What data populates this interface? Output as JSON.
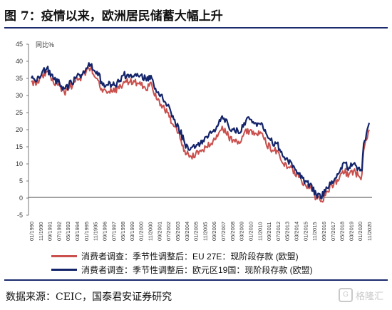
{
  "figure": {
    "title": "图 7：疫情以来，欧洲居民储蓄大幅上升",
    "source": "数据来源：CEIC，国泰君安证券研究",
    "watermark": "格隆汇"
  },
  "chart_data": {
    "type": "line",
    "unit_label": "同比%",
    "ylim": [
      -5,
      45
    ],
    "yticks": [
      -5,
      0,
      5,
      10,
      15,
      20,
      25,
      30,
      35,
      40,
      45
    ],
    "x_range": [
      "1990-01",
      "2020-11"
    ],
    "xticks": [
      "01/1990",
      "11/1990",
      "09/1991",
      "07/1992",
      "05/1993",
      "03/1994",
      "01/1995",
      "11/1995",
      "09/1996",
      "07/1997",
      "05/1998",
      "03/1999",
      "01/2000",
      "11/2000",
      "09/2001",
      "07/2002",
      "05/2003",
      "03/2004",
      "01/2005",
      "11/2005",
      "09/2006",
      "07/2007",
      "05/2008",
      "03/2009",
      "01/2010",
      "11/2010",
      "09/2011",
      "07/2012",
      "05/2013",
      "03/2014",
      "01/2015",
      "11/2015",
      "09/2016",
      "07/2017",
      "05/2018",
      "03/2019",
      "01/2020",
      "11/2020"
    ],
    "grid": false,
    "legend_position": "bottom",
    "series": [
      {
        "name": "消费者调查：季节性调整后：EU 27E：现阶段存款 (欧盟)",
        "color": "#c9504d",
        "points": [
          [
            "1990-01",
            34
          ],
          [
            "1990-06",
            33
          ],
          [
            "1991-01",
            36
          ],
          [
            "1991-06",
            37
          ],
          [
            "1992-01",
            34
          ],
          [
            "1992-06",
            33
          ],
          [
            "1993-01",
            31
          ],
          [
            "1993-06",
            32
          ],
          [
            "1994-01",
            34
          ],
          [
            "1994-06",
            35
          ],
          [
            "1995-01",
            37
          ],
          [
            "1995-06",
            38
          ],
          [
            "1996-01",
            35
          ],
          [
            "1996-06",
            32
          ],
          [
            "1997-01",
            31
          ],
          [
            "1997-06",
            31
          ],
          [
            "1998-01",
            32
          ],
          [
            "1998-06",
            34
          ],
          [
            "1999-01",
            34
          ],
          [
            "1999-06",
            34
          ],
          [
            "2000-01",
            33
          ],
          [
            "2000-06",
            32
          ],
          [
            "2001-01",
            33
          ],
          [
            "2001-06",
            29
          ],
          [
            "2002-01",
            27
          ],
          [
            "2002-06",
            25
          ],
          [
            "2003-01",
            21
          ],
          [
            "2003-06",
            19
          ],
          [
            "2004-01",
            14
          ],
          [
            "2004-06",
            12
          ],
          [
            "2005-01",
            13
          ],
          [
            "2005-06",
            14
          ],
          [
            "2006-01",
            15
          ],
          [
            "2006-06",
            16
          ],
          [
            "2007-01",
            18
          ],
          [
            "2007-06",
            21
          ],
          [
            "2008-01",
            18
          ],
          [
            "2008-06",
            17
          ],
          [
            "2009-01",
            16
          ],
          [
            "2009-06",
            19
          ],
          [
            "2010-01",
            20
          ],
          [
            "2010-06",
            19
          ],
          [
            "2011-01",
            19
          ],
          [
            "2011-06",
            16
          ],
          [
            "2012-01",
            14
          ],
          [
            "2012-06",
            14
          ],
          [
            "2013-01",
            10
          ],
          [
            "2013-06",
            9
          ],
          [
            "2014-01",
            8
          ],
          [
            "2014-06",
            6
          ],
          [
            "2015-01",
            4
          ],
          [
            "2015-06",
            3
          ],
          [
            "2016-01",
            0
          ],
          [
            "2016-06",
            -1
          ],
          [
            "2017-01",
            2
          ],
          [
            "2017-06",
            4
          ],
          [
            "2018-01",
            5
          ],
          [
            "2018-06",
            8
          ],
          [
            "2019-01",
            7
          ],
          [
            "2019-06",
            8
          ],
          [
            "2020-01",
            6
          ],
          [
            "2020-03",
            7
          ],
          [
            "2020-05",
            14
          ],
          [
            "2020-08",
            17
          ],
          [
            "2020-11",
            20
          ]
        ]
      },
      {
        "name": "消费者调查：季节性调整后：欧元区19国：现阶段存款 (欧盟)",
        "color": "#14246a",
        "points": [
          [
            "1990-01",
            35
          ],
          [
            "1990-06",
            34
          ],
          [
            "1991-01",
            37
          ],
          [
            "1991-06",
            38
          ],
          [
            "1992-01",
            35
          ],
          [
            "1992-06",
            34
          ],
          [
            "1993-01",
            32
          ],
          [
            "1993-06",
            33
          ],
          [
            "1994-01",
            35
          ],
          [
            "1994-06",
            36
          ],
          [
            "1995-01",
            38
          ],
          [
            "1995-06",
            39
          ],
          [
            "1996-01",
            37
          ],
          [
            "1996-06",
            34
          ],
          [
            "1997-01",
            33
          ],
          [
            "1997-06",
            33
          ],
          [
            "1998-01",
            34
          ],
          [
            "1998-06",
            36
          ],
          [
            "1999-01",
            36
          ],
          [
            "1999-06",
            36
          ],
          [
            "2000-01",
            36
          ],
          [
            "2000-06",
            35
          ],
          [
            "2001-01",
            35
          ],
          [
            "2001-06",
            31
          ],
          [
            "2002-01",
            29
          ],
          [
            "2002-06",
            27
          ],
          [
            "2003-01",
            23
          ],
          [
            "2003-06",
            21
          ],
          [
            "2004-01",
            16
          ],
          [
            "2004-06",
            14
          ],
          [
            "2005-01",
            15
          ],
          [
            "2005-06",
            16
          ],
          [
            "2006-01",
            18
          ],
          [
            "2006-06",
            19
          ],
          [
            "2007-01",
            21
          ],
          [
            "2007-06",
            24
          ],
          [
            "2008-01",
            21
          ],
          [
            "2008-06",
            20
          ],
          [
            "2009-01",
            19
          ],
          [
            "2009-06",
            22
          ],
          [
            "2010-01",
            23
          ],
          [
            "2010-06",
            22
          ],
          [
            "2011-01",
            22
          ],
          [
            "2011-06",
            19
          ],
          [
            "2012-01",
            16
          ],
          [
            "2012-06",
            16
          ],
          [
            "2013-01",
            12
          ],
          [
            "2013-06",
            11
          ],
          [
            "2014-01",
            9
          ],
          [
            "2014-06",
            7
          ],
          [
            "2015-01",
            5
          ],
          [
            "2015-06",
            4
          ],
          [
            "2016-01",
            1
          ],
          [
            "2016-06",
            0
          ],
          [
            "2017-01",
            3
          ],
          [
            "2017-06",
            5
          ],
          [
            "2018-01",
            7
          ],
          [
            "2018-06",
            10
          ],
          [
            "2019-01",
            9
          ],
          [
            "2019-06",
            10
          ],
          [
            "2020-01",
            8
          ],
          [
            "2020-03",
            8
          ],
          [
            "2020-05",
            16
          ],
          [
            "2020-08",
            19
          ],
          [
            "2020-11",
            22
          ]
        ]
      }
    ]
  }
}
